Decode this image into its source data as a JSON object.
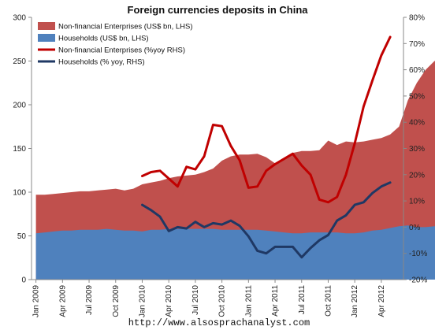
{
  "chart_data": {
    "type": "area",
    "title": "Foreign currencies deposits in China",
    "source_note": "http://www.alsosprachanalyst.com",
    "x_tick_labels": [
      "Jan 2009",
      "Apr 2009",
      "Jul 2009",
      "Oct 2009",
      "Jan 2010",
      "Apr 2010",
      "Jul 2010",
      "Oct 2010",
      "Jan 2011",
      "Apr 2011",
      "Jul 2011",
      "Oct 2011",
      "Jan 2012",
      "Apr 2012"
    ],
    "x_start": "2009-01",
    "x_end": "2012-06",
    "y_left": {
      "min": 0,
      "max": 300,
      "ticks": [
        0,
        50,
        100,
        150,
        200,
        250,
        300
      ]
    },
    "y_right": {
      "min": -20,
      "max": 80,
      "ticks": [
        "-20%",
        "-10%",
        "0%",
        "10%",
        "20%",
        "30%",
        "40%",
        "50%",
        "60%",
        "70%",
        "80%"
      ]
    },
    "legend_position": "top-left",
    "series": [
      {
        "name": "Non-financial Enterprises (US$ bn, LHS)",
        "kind": "area",
        "axis": "left",
        "color": "#c0504d",
        "values": [
          97,
          97,
          98,
          99,
          100,
          101,
          101,
          102,
          103,
          104,
          102,
          104,
          109,
          111,
          113,
          116,
          118,
          119,
          120,
          123,
          127,
          136,
          141,
          143,
          143,
          144,
          140,
          133,
          137,
          145,
          147,
          147,
          148,
          159,
          154,
          158,
          157,
          158,
          160,
          162,
          166,
          175,
          205,
          225,
          240,
          250,
          253
        ]
      },
      {
        "name": "Households (US$ bn, LHS)",
        "kind": "area",
        "axis": "left",
        "color": "#4f81bd",
        "values": [
          53,
          54,
          55,
          56,
          56,
          57,
          57,
          57,
          58,
          57,
          56,
          56,
          55,
          57,
          57,
          58,
          58,
          58,
          58,
          58,
          58,
          57,
          57,
          57,
          57,
          57,
          56,
          55,
          54,
          53,
          53,
          54,
          54,
          54,
          54,
          53,
          53,
          54,
          56,
          57,
          59,
          61,
          62,
          60,
          60,
          61,
          62
        ]
      },
      {
        "name": "Non-financial Enterprises (%yoy RHS)",
        "kind": "line",
        "axis": "right",
        "color": "#c00000",
        "start_index": 12,
        "values": [
          19.5,
          21,
          21.5,
          18.5,
          15.5,
          23,
          22,
          27,
          39,
          38.5,
          31,
          25.5,
          15,
          15.5,
          21.5,
          24,
          26,
          28,
          23.5,
          20,
          10.5,
          9.5,
          11.5,
          20,
          32,
          46,
          56,
          65.5,
          72.5
        ]
      },
      {
        "name": "Households (% yoy, RHS)",
        "kind": "line",
        "axis": "right",
        "color": "#1f3864",
        "start_index": 12,
        "values": [
          8.5,
          6.5,
          4,
          -1.5,
          0,
          -0.5,
          2,
          0,
          1.5,
          1,
          2.5,
          0.5,
          -3.5,
          -9,
          -10,
          -7.5,
          -7.5,
          -7.5,
          -11.5,
          -8,
          -5,
          -3,
          2.5,
          4.5,
          8.5,
          9.5,
          13,
          15.5,
          17
        ]
      }
    ]
  }
}
